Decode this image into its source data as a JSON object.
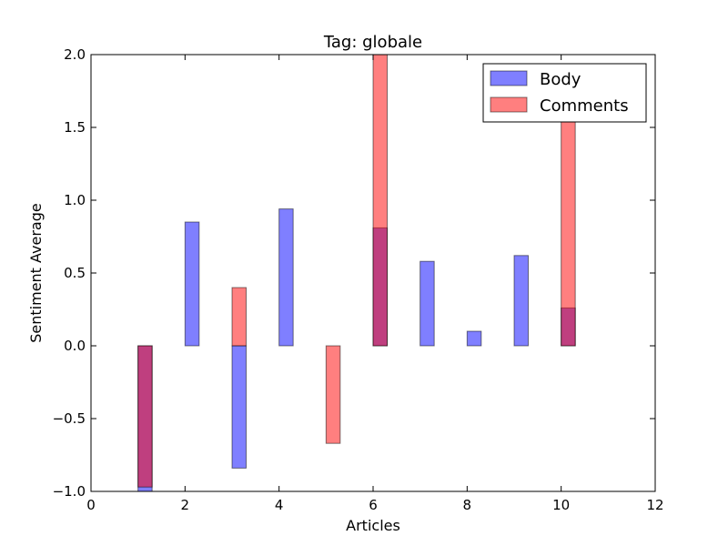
{
  "chart_data": {
    "type": "bar",
    "title": "Tag: globale",
    "xlabel": "Articles",
    "ylabel": "Sentiment Average",
    "xlim": [
      0,
      12
    ],
    "ylim": [
      -1.0,
      2.0
    ],
    "xticks": [
      "0",
      "2",
      "4",
      "6",
      "8",
      "10",
      "12"
    ],
    "yticks": [
      "2.0",
      "1.5",
      "1.0",
      "0.5",
      "0.0",
      "−0.5",
      "−1.0"
    ],
    "bar_width": 0.3,
    "legend_position": "top-right",
    "grid": false,
    "series": [
      {
        "name": "Body",
        "color": "#0000ff",
        "opacity": 0.5,
        "x": [
          1,
          2,
          3,
          4,
          5,
          6,
          7,
          8,
          9,
          10
        ],
        "values": [
          -1.0,
          0.85,
          -0.84,
          0.94,
          0.0,
          0.81,
          0.58,
          0.1,
          0.62,
          0.26
        ]
      },
      {
        "name": "Comments",
        "color": "#ff0000",
        "opacity": 0.5,
        "x": [
          1,
          2,
          3,
          4,
          5,
          6,
          7,
          8,
          9,
          10
        ],
        "values": [
          -0.97,
          0.0,
          0.4,
          0.0,
          -0.67,
          2.0,
          0.0,
          0.0,
          0.0,
          1.55
        ]
      }
    ]
  }
}
